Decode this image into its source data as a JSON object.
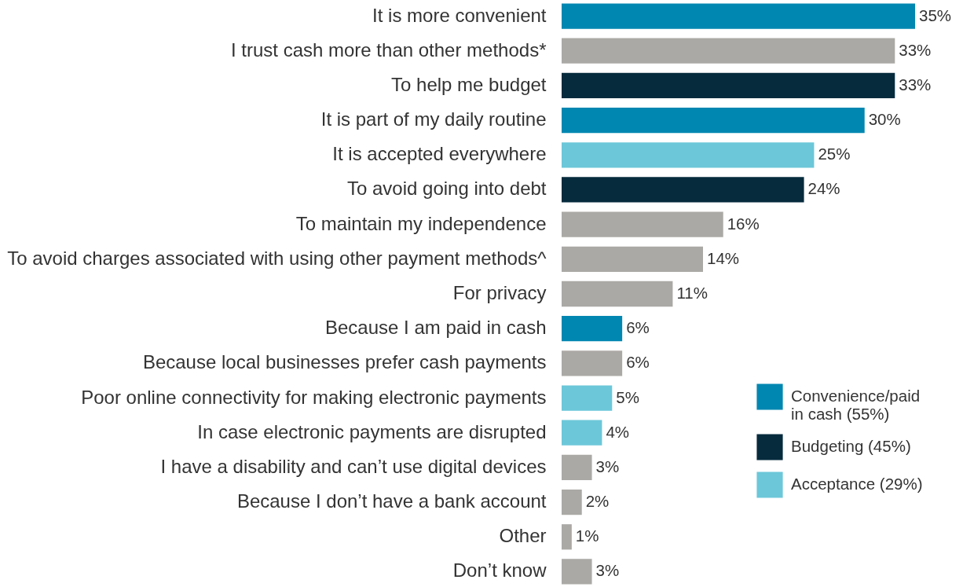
{
  "chart_data": {
    "type": "bar",
    "orientation": "horizontal",
    "tick_labels": "y",
    "legend": "bottom right",
    "categories": [
      "It is more convenient",
      "I trust cash more than other methods*",
      "To help me budget",
      "It is part of my daily routine",
      "It is accepted everywhere",
      "To avoid going into debt",
      "To maintain my independence",
      "To avoid charges associated with using other payment methods^",
      "For privacy",
      "Because I am paid in cash",
      "Because local businesses prefer cash payments",
      "Poor online connectivity for making electronic payments",
      "In case electronic payments are disrupted",
      "I have a disability and can’t use digital devices",
      "Because I don’t have a bank account",
      "Other",
      "Don’t know"
    ],
    "series": [
      {
        "name": "Convenience/paid in cash (55%)",
        "color": "#0087b1",
        "values": [
          35,
          null,
          null,
          30,
          null,
          null,
          null,
          null,
          null,
          6,
          null,
          null,
          null,
          null,
          null,
          null,
          null
        ],
        "value_labels": [
          "35%",
          null,
          null,
          "30%",
          null,
          null,
          null,
          null,
          null,
          "6%",
          null,
          null,
          null,
          null,
          null,
          null,
          null
        ]
      },
      {
        "name": "Budgeting (45%)",
        "color": "#062b3d",
        "values": [
          null,
          null,
          33,
          null,
          null,
          24,
          null,
          null,
          null,
          null,
          null,
          null,
          null,
          null,
          null,
          null,
          null
        ],
        "value_labels": [
          null,
          null,
          "33%",
          null,
          null,
          "24%",
          null,
          null,
          null,
          null,
          null,
          null,
          null,
          null,
          null,
          null,
          null
        ]
      },
      {
        "name": "Acceptance (29%)",
        "color": "#6cc7d9",
        "values": [
          null,
          null,
          null,
          null,
          25,
          null,
          null,
          null,
          null,
          null,
          null,
          5,
          4,
          null,
          null,
          null,
          null
        ],
        "value_labels": [
          null,
          null,
          null,
          null,
          "25%",
          null,
          null,
          null,
          null,
          null,
          null,
          "5%",
          "4%",
          null,
          null,
          null,
          null
        ]
      },
      {
        "color": "#aba9a5",
        "values": [
          null,
          33,
          null,
          null,
          null,
          null,
          16,
          14,
          11,
          null,
          6,
          null,
          null,
          3,
          2,
          1,
          3
        ],
        "value_labels": [
          null,
          "33%",
          null,
          null,
          null,
          null,
          "16%",
          "14%",
          "11%",
          null,
          "6%",
          null,
          null,
          "3%",
          "2%",
          "1%",
          "3%"
        ]
      }
    ]
  }
}
